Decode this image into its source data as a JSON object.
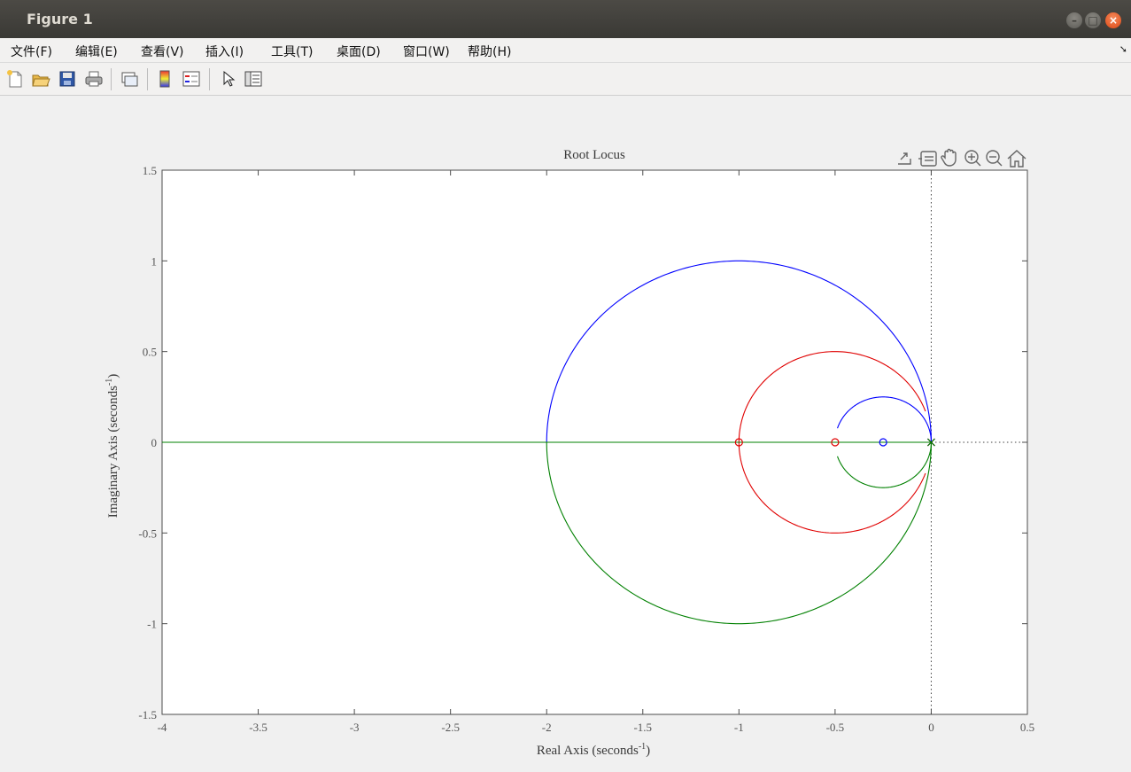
{
  "window": {
    "title": "Figure 1",
    "controls": [
      "minimize-icon",
      "maximize-icon",
      "close-icon"
    ]
  },
  "menu": [
    {
      "label": "文件(F)",
      "underline": "F"
    },
    {
      "label": "编辑(E)",
      "underline": "E"
    },
    {
      "label": "查看(V)",
      "underline": "V"
    },
    {
      "label": "插入(I)",
      "underline": "I"
    },
    {
      "label": "工具(T)",
      "underline": "T"
    },
    {
      "label": "桌面(D)",
      "underline": "D"
    },
    {
      "label": "窗口(W)",
      "underline": "W"
    },
    {
      "label": "帮助(H)",
      "underline": "H"
    }
  ],
  "toolbar": [
    "new-figure-icon",
    "open-file-icon",
    "save-icon",
    "print-icon",
    "link-icon",
    "colorbar-icon",
    "legend-icon",
    "pointer-icon",
    "property-editor-icon"
  ],
  "axes_toolbar": [
    "export-icon",
    "brush-icon",
    "pan-icon",
    "zoom-in-icon",
    "zoom-out-icon",
    "home-icon"
  ],
  "chart_data": {
    "type": "line",
    "title": "Root Locus",
    "xlabel": "Real Axis (seconds",
    "xlabel_sup": "-1",
    "xlabel_end": ")",
    "ylabel": "Imaginary Axis (seconds",
    "ylabel_sup": "-1",
    "ylabel_end": ")",
    "xlim": [
      -4,
      0.5
    ],
    "ylim": [
      -1.5,
      1.5
    ],
    "xticks": [
      "-4",
      "-3.5",
      "-3",
      "-2.5",
      "-2",
      "-1.5",
      "-1",
      "-0.5",
      "0",
      "0.5"
    ],
    "yticks": [
      "-1.5",
      "-1",
      "-0.5",
      "0",
      "0.5",
      "1",
      "1.5"
    ],
    "grid": false,
    "colors": {
      "blue": "#0000ff",
      "red": "#e00000",
      "green": "#008000",
      "axes": "#4d4d4d"
    },
    "poles": [
      [
        0,
        0
      ],
      [
        0,
        0
      ],
      [
        0,
        0
      ]
    ],
    "zeros": [
      [
        -1,
        0
      ],
      [
        -0.5,
        0
      ],
      [
        -0.25,
        0
      ]
    ],
    "series": [
      {
        "color": "blue",
        "branches": [
          {
            "kind": "circle",
            "center": [
              -1,
              0
            ],
            "radius": 1,
            "half": "upper"
          },
          {
            "kind": "circle",
            "center": [
              -0.25,
              0
            ],
            "radius": 0.25,
            "half": "upper",
            "from_deg": 0,
            "to_deg": 162
          },
          {
            "kind": "segment",
            "from": [
              -0.5,
              0
            ],
            "to": [
              -0.25,
              0
            ]
          }
        ]
      },
      {
        "color": "red",
        "branches": [
          {
            "kind": "circle",
            "center": [
              -0.5,
              0
            ],
            "radius": 0.5,
            "half": "full",
            "from_deg": 20,
            "to_deg": 340
          }
        ]
      },
      {
        "color": "green",
        "branches": [
          {
            "kind": "circle",
            "center": [
              -1,
              0
            ],
            "radius": 1,
            "half": "lower"
          },
          {
            "kind": "circle",
            "center": [
              -0.25,
              0
            ],
            "radius": 0.25,
            "half": "lower",
            "from_deg": 198,
            "to_deg": 360
          },
          {
            "kind": "segment",
            "from": [
              -4,
              0
            ],
            "to": [
              0,
              0
            ]
          }
        ]
      }
    ]
  }
}
